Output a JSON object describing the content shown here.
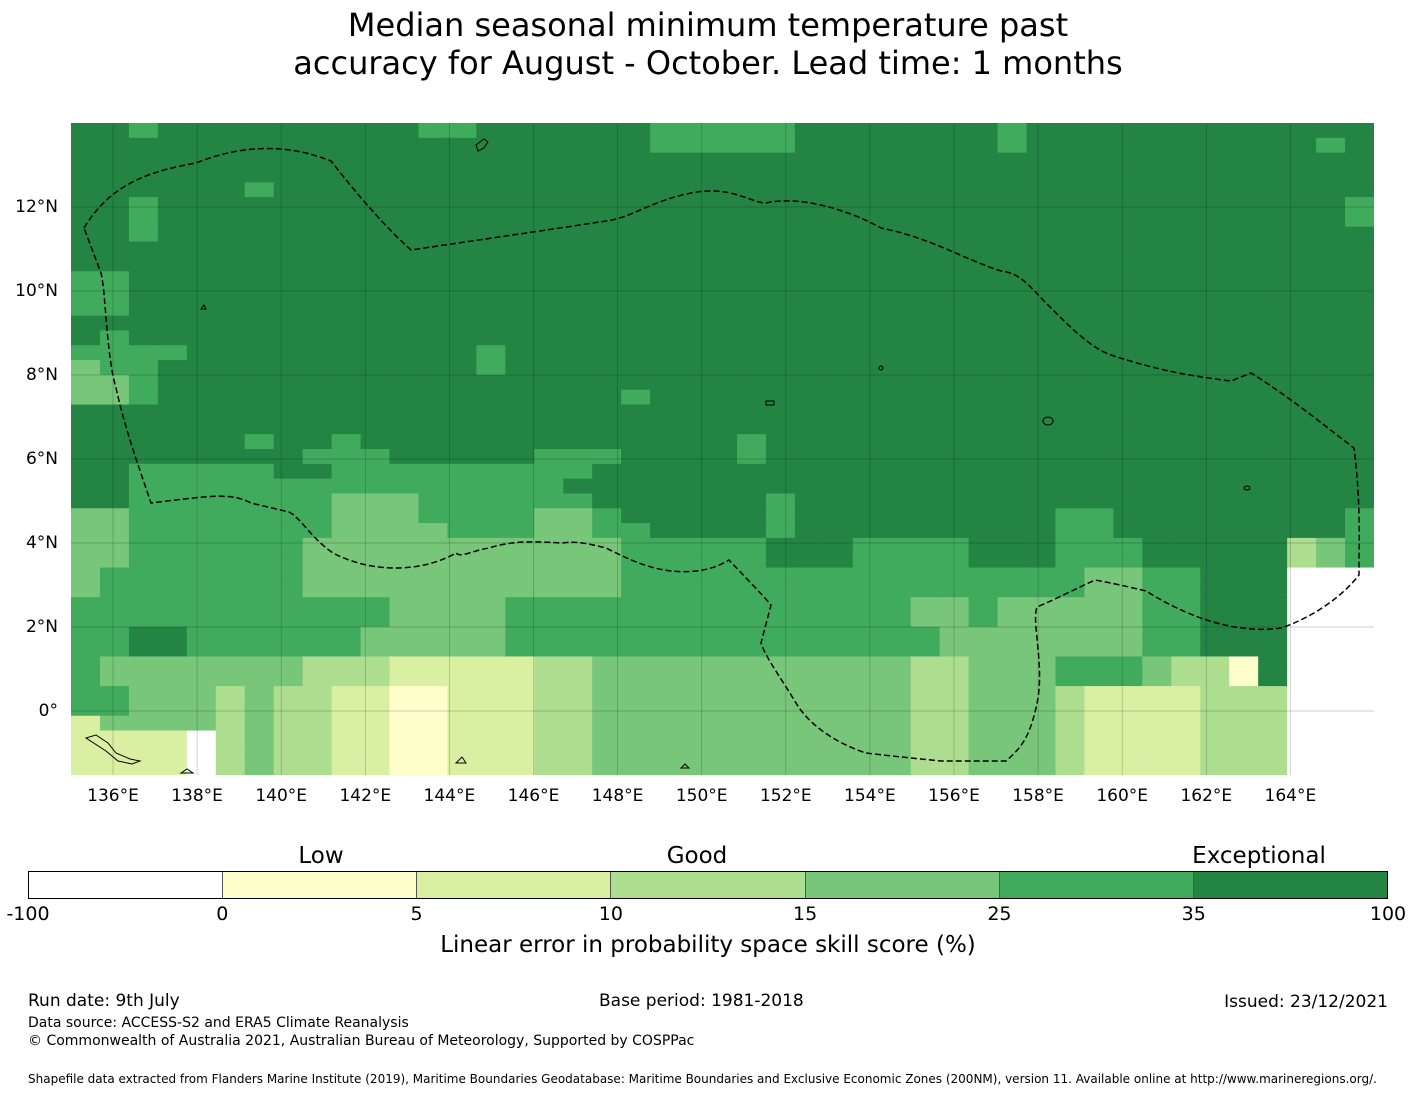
{
  "title_line1": "Median seasonal minimum temperature past",
  "title_line2": "accuracy for August - October. Lead time: 1 months",
  "map": {
    "lon_labels": [
      "136°E",
      "138°E",
      "140°E",
      "142°E",
      "144°E",
      "146°E",
      "148°E",
      "150°E",
      "152°E",
      "154°E",
      "156°E",
      "158°E",
      "160°E",
      "162°E",
      "164°E"
    ],
    "lat_labels": [
      "12°N",
      "10°N",
      "8°N",
      "6°N",
      "4°N",
      "2°N",
      "0°"
    ],
    "colors": [
      "#ffffff",
      "#ffffcc",
      "#d9f0a3",
      "#addd8e",
      "#78c679",
      "#41ab5d",
      "#238443"
    ],
    "grid": [
      "665666666666556666665555566666665666666666666",
      "666666666666666666665555566666665666666666656",
      "666666666666666666666666666666666666666666666",
      "666666666666666666666666666666666666666666666",
      "666666566666666666666666666666666666666666666",
      "665666666666666666666666666666666666666666665",
      "665666666666666666666666666666666666666666665",
      "665666666666666666666666666666666666666666666",
      "666666666666666666666666666666666666666666666",
      "666666666666666666666666666666666666666666666",
      "556666666666666666666666666666666666666666666",
      "556666666666666666666666666666666666666666666",
      "556666666666666666666666666666666666666666666",
      "666666666666666666666666666666666666666666666",
      "656666666666666666666666666666666666666666666",
      "555566666666665666666666666666666666666666666",
      "455666666666665666666666666666666666666666666",
      "445666666666666666666666666666666666666666666",
      "445666666666666666656666666666666666666666666",
      "666666666666666666666666666666666666666666666",
      "666666666666666666666666666666666666666666666",
      "666666566566666666666665666666666666666666666",
      "666666665556666655566665666666666666666666666",
      "665555566555555555666666666666666666666666666",
      "665555555555555556666666666666666666666666666",
      "665555555444555555666666566666666666666666666",
      "445555555444555544566666566666666655666666665",
      "445555555444455544556666566666666655666666665",
      "445555554444444444455555666555566655566666345",
      "445555554444444444455555666555566655566666345",
      "455555554444444444455555555555555554455666000",
      "455555554444444444455555555555555554455666000",
      "555555555554444555555555555554454444455666000",
      "555555555554444555555555555554454444455666000",
      "556655555544444555555555555555444444455666000",
      "556655555544444555555555555555444444455666000",
      "544444443332222233444444444443344455543316000",
      "544444443332222233444444444443344455543316000",
      "554443433221122233444444444443344432222333000",
      "554443433221122233444444444443344432222333000",
      "244443433221122233444444444443344432222333000",
      "222203433221122233444444444443344432222333000",
      "222203433221122233444444444443344432222333000",
      "222203433221122233444444444443344432222333000"
    ]
  },
  "colorbar": {
    "ticks": [
      "-100",
      "0",
      "5",
      "10",
      "15",
      "25",
      "35",
      "100"
    ],
    "colors": [
      "#ffffff",
      "#ffffcc",
      "#d9f0a3",
      "#addd8e",
      "#78c679",
      "#41ab5d",
      "#238443"
    ],
    "categories": [
      "Low",
      "Good",
      "Exceptional"
    ],
    "title": "Linear error in probability space skill score (%)"
  },
  "footer": {
    "run_date": "Run date: 9th July",
    "base_period": "Base period: 1981-2018",
    "issued": "Issued: 23/12/2021",
    "data_source": "Data source: ACCESS-S2 and ERA5 Climate Reanalysis",
    "copyright": "© Commonwealth of Australia 2021, Australian Bureau of Meteorology, Supported by COSPPac",
    "shapefile": "Shapefile data extracted from Flanders Marine Institute (2019), Maritime Boundaries Geodatabase: Maritime Boundaries and Exclusive Economic Zones (200NM), version 11. Available online at http://www.marineregions.org/."
  }
}
